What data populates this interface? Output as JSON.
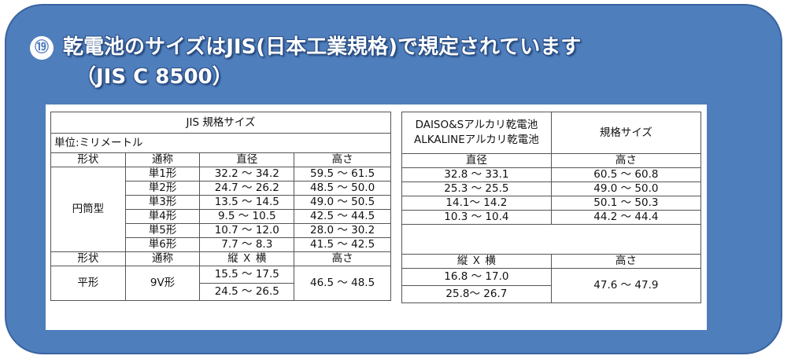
{
  "title": {
    "badge": "⑲",
    "line1": "乾電池のサイズはJIS(日本工業規格)で規定されています",
    "line2": "（JIS C 8500）"
  },
  "jis_table": {
    "title": "JIS 規格サイズ",
    "unit": "単位:ミリメートル",
    "headers": [
      "形状",
      "通称",
      "直径",
      "高さ"
    ],
    "cylinder_shape": "円筒型",
    "rows": [
      {
        "name": "単1形",
        "diameter": "32.2 〜 34.2",
        "height": "59.5 〜 61.5"
      },
      {
        "name": "単2形",
        "diameter": "24.7 〜 26.2",
        "height": "48.5 〜 50.0"
      },
      {
        "name": "単3形",
        "diameter": "13.5 〜 14.5",
        "height": "49.0 〜 50.5"
      },
      {
        "name": "単4形",
        "diameter": "9.5 〜 10.5",
        "height": "42.5 〜 44.5"
      },
      {
        "name": "単5形",
        "diameter": "10.7 〜 12.0",
        "height": "28.0 〜 30.2"
      },
      {
        "name": "単6形",
        "diameter": "7.7 〜 8.3",
        "height": "41.5 〜 42.5"
      }
    ],
    "flat_headers": [
      "形状",
      "通称",
      "縦 Ｘ 横",
      "高さ"
    ],
    "flat_shape": "平形",
    "flat": {
      "name": "9V形",
      "dim1": "15.5 〜 17.5",
      "dim2": "24.5 〜 26.5",
      "height": "46.5 〜 48.5"
    }
  },
  "daiso_table": {
    "title_line1": "DAISO&Sアルカリ乾電池",
    "title_line2": "ALKALINEアルカリ乾電池",
    "title_right": "規格サイズ",
    "headers": [
      "直径",
      "高さ"
    ],
    "rows": [
      {
        "diameter": "32.8 〜 33.1",
        "height": "60.5 〜 60.8"
      },
      {
        "diameter": "25.3 〜 25.5",
        "height": "49.0 〜 50.0"
      },
      {
        "diameter": "14.1〜 14.2",
        "height": "50.1 〜 50.3"
      },
      {
        "diameter": "10.3 〜 10.4",
        "height": "44.2 〜 44.4"
      }
    ],
    "flat_headers": [
      "縦 Ｘ 横",
      "高さ"
    ],
    "flat": {
      "dim1": "16.8 〜 17.0",
      "dim2": "25.8〜 26.7",
      "height": "47.6 〜 47.9"
    }
  }
}
